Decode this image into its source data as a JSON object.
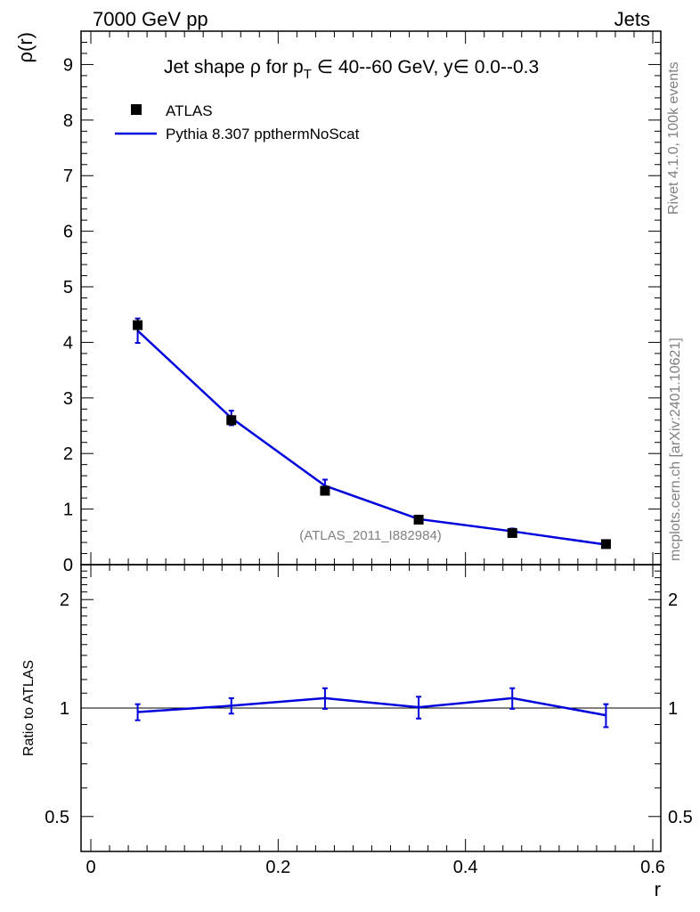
{
  "header": {
    "left": "7000 GeV pp",
    "right": "Jets"
  },
  "side_labels": {
    "rivet": "Rivet 4.1.0,  100k events",
    "mcplots": "mcplots.cern.ch [arXiv:2401.10621]"
  },
  "chart_data": {
    "type": "line",
    "title": {
      "prefix": "Jet shape ρ for p",
      "sub": "T",
      "suffix": " ∈ 40--60 GeV, y∈ 0.0--0.3"
    },
    "watermark": "(ATLAS_2011_I882984)",
    "xlabel": "r",
    "xlim": [
      0,
      0.6
    ],
    "x_ticks": [
      "0",
      "0.2",
      "0.4",
      "0.6"
    ],
    "x_tick_values": [
      0,
      0.2,
      0.4,
      0.6
    ],
    "main": {
      "ylabel": "ρ(r)",
      "ylim": [
        0,
        9.6
      ],
      "y_ticks": [
        "0",
        "1",
        "2",
        "3",
        "4",
        "5",
        "6",
        "7",
        "8",
        "9"
      ],
      "y_tick_values": [
        0,
        1,
        2,
        3,
        4,
        5,
        6,
        7,
        8,
        9
      ]
    },
    "ratio": {
      "ylabel": "Ratio to ATLAS",
      "ylim": [
        0.4,
        2.5
      ],
      "scale": "log",
      "y_ticks": [
        "0.5",
        "1",
        "2"
      ],
      "y_tick_values": [
        0.5,
        1,
        2
      ],
      "reference": 1
    },
    "legend": {
      "position": "top-left",
      "entries": [
        {
          "label": "ATLAS",
          "marker": "square",
          "color": "#000000"
        },
        {
          "label": "Pythia 8.307 ppthermNoScat",
          "marker": "line",
          "color": "#0000dd"
        }
      ]
    },
    "x": [
      0.05,
      0.15,
      0.25,
      0.35,
      0.45,
      0.55
    ],
    "series": [
      {
        "name": "ATLAS",
        "values": [
          4.31,
          2.6,
          1.33,
          0.81,
          0.57,
          0.37
        ],
        "errors": [
          0.12,
          0.1,
          0.07,
          0.04,
          0.03,
          0.02
        ]
      },
      {
        "name": "Pythia 8.307 ppthermNoScat",
        "values": [
          4.21,
          2.64,
          1.42,
          0.82,
          0.6,
          0.36
        ],
        "errors": [
          0.22,
          0.13,
          0.11,
          0.06,
          0.05,
          0.03
        ]
      }
    ],
    "ratio_values": [
      0.975,
      1.015,
      1.065,
      1.005,
      1.065,
      0.955
    ],
    "ratio_errors": [
      0.05,
      0.05,
      0.07,
      0.07,
      0.07,
      0.07
    ]
  }
}
